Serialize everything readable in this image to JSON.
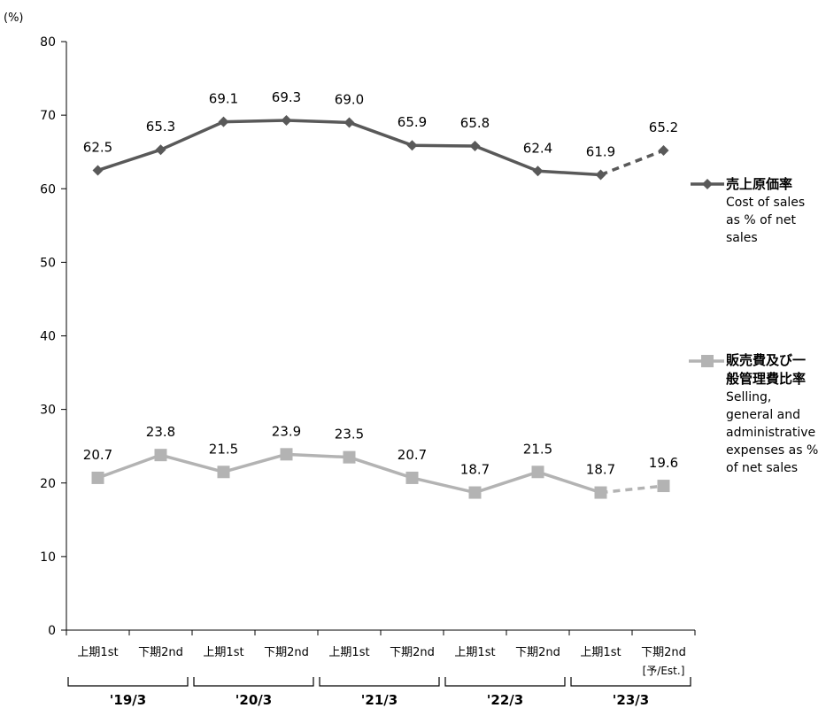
{
  "chart_data": {
    "type": "line",
    "unit_label": "(%)",
    "ylim": [
      0,
      80
    ],
    "yticks": [
      0,
      10,
      20,
      30,
      40,
      50,
      60,
      70,
      80
    ],
    "categories": [
      "上期1st",
      "下期2nd",
      "上期1st",
      "下期2nd",
      "上期1st",
      "下期2nd",
      "上期1st",
      "下期2nd",
      "上期1st",
      "下期2nd"
    ],
    "estimate_note": "[予/Est.]",
    "groups": [
      {
        "label": "'19/3",
        "span": [
          0,
          1
        ]
      },
      {
        "label": "'20/3",
        "span": [
          2,
          3
        ]
      },
      {
        "label": "'21/3",
        "span": [
          4,
          5
        ]
      },
      {
        "label": "'22/3",
        "span": [
          6,
          7
        ]
      },
      {
        "label": "'23/3",
        "span": [
          8,
          9
        ]
      }
    ],
    "series": [
      {
        "name": "売上原価率",
        "name_en": "Cost of sales as % of net sales",
        "marker": "diamond",
        "color": "#595959",
        "values": [
          62.5,
          65.3,
          69.1,
          69.3,
          69.0,
          65.9,
          65.8,
          62.4,
          61.9,
          65.2
        ],
        "labels": [
          "62.5",
          "65.3",
          "69.1",
          "69.3",
          "69.0",
          "65.9",
          "65.8",
          "62.4",
          "61.9",
          "65.2"
        ],
        "estimated_from_index": 9
      },
      {
        "name": "販売費及び一般管理費比率",
        "name_en": "Selling, general and administrative expenses as % of net sales",
        "marker": "square",
        "color": "#b3b3b3",
        "values": [
          20.7,
          23.8,
          21.5,
          23.9,
          23.5,
          20.7,
          18.7,
          21.5,
          18.7,
          19.6
        ],
        "labels": [
          "20.7",
          "23.8",
          "21.5",
          "23.9",
          "23.5",
          "20.7",
          "18.7",
          "21.5",
          "18.7",
          "19.6"
        ],
        "estimated_from_index": 9
      }
    ]
  },
  "legend": {
    "cost": {
      "title": "売上原価率",
      "sub": [
        "Cost of sales",
        "as % of net",
        "sales"
      ]
    },
    "sga": {
      "title": "販売費及び一般管理費比率",
      "sub": [
        "Selling,",
        "general and",
        "administrative",
        "expenses as %",
        "of net sales"
      ]
    }
  }
}
